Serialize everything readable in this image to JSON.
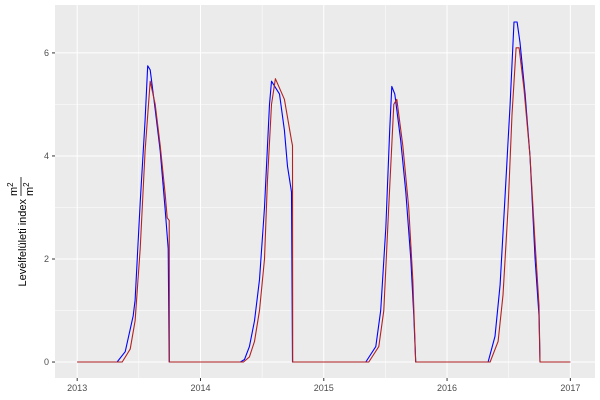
{
  "chart_data": {
    "type": "line",
    "title": "",
    "xlabel": "",
    "ylabel": "Levélfelületi index",
    "ylabel_unit_numerator": "m",
    "ylabel_unit_denominator": "m",
    "ylabel_unit_exponent": "2",
    "xlim": [
      2012.82,
      2017.2
    ],
    "ylim": [
      -0.31,
      6.93
    ],
    "grid": true,
    "legend": "none",
    "x_ticks": [
      2013,
      2014,
      2015,
      2016,
      2017
    ],
    "x_tick_labels": [
      "2013",
      "2014",
      "2015",
      "2016",
      "2017"
    ],
    "y_ticks": [
      0,
      2,
      4,
      6
    ],
    "y_tick_labels": [
      "0",
      "2",
      "4",
      "6"
    ],
    "colors": {
      "panel": "#ebebeb",
      "grid": "#ffffff",
      "series_1": "#0000ff",
      "series_2": "#b22222"
    },
    "series": [
      {
        "color": "#0000ff",
        "points": [
          [
            2013,
            0
          ],
          [
            2013.324,
            0
          ],
          [
            2013.389,
            0.2
          ],
          [
            2013.454,
            0.9
          ],
          [
            2013.47,
            1.2
          ],
          [
            2013.511,
            3.1
          ],
          [
            2013.551,
            4.7
          ],
          [
            2013.572,
            5.75
          ],
          [
            2013.592,
            5.67
          ],
          [
            2013.633,
            4.9
          ],
          [
            2013.673,
            4.1
          ],
          [
            2013.714,
            2.95
          ],
          [
            2013.738,
            2.2
          ],
          [
            2013.746,
            0
          ],
          [
            2014.324,
            0
          ],
          [
            2014.357,
            0.05
          ],
          [
            2014.397,
            0.3
          ],
          [
            2014.438,
            0.8
          ],
          [
            2014.479,
            1.6
          ],
          [
            2014.519,
            3.0
          ],
          [
            2014.56,
            5.0
          ],
          [
            2014.576,
            5.45
          ],
          [
            2014.641,
            5.2
          ],
          [
            2014.681,
            4.5
          ],
          [
            2014.706,
            3.8
          ],
          [
            2014.738,
            3.3
          ],
          [
            2014.746,
            0
          ],
          [
            2015.341,
            0
          ],
          [
            2015.422,
            0.3
          ],
          [
            2015.462,
            1.0
          ],
          [
            2015.503,
            2.6
          ],
          [
            2015.535,
            4.5
          ],
          [
            2015.552,
            5.35
          ],
          [
            2015.576,
            5.2
          ],
          [
            2015.624,
            4.3
          ],
          [
            2015.665,
            3.3
          ],
          [
            2015.706,
            2.0
          ],
          [
            2015.73,
            0.9
          ],
          [
            2015.746,
            0
          ],
          [
            2016.333,
            0
          ],
          [
            2016.389,
            0.5
          ],
          [
            2016.43,
            1.5
          ],
          [
            2016.47,
            3.2
          ],
          [
            2016.511,
            5.0
          ],
          [
            2016.543,
            6.6
          ],
          [
            2016.568,
            6.6
          ],
          [
            2016.592,
            6.2
          ],
          [
            2016.633,
            5.2
          ],
          [
            2016.673,
            4.0
          ],
          [
            2016.714,
            2.0
          ],
          [
            2016.746,
            0.9
          ],
          [
            2016.754,
            0
          ],
          [
            2017,
            0
          ]
        ]
      },
      {
        "color": "#b22222",
        "points": [
          [
            2013,
            0
          ],
          [
            2013.365,
            0
          ],
          [
            2013.43,
            0.25
          ],
          [
            2013.47,
            0.8
          ],
          [
            2013.511,
            2.2
          ],
          [
            2013.551,
            4.1
          ],
          [
            2013.592,
            5.45
          ],
          [
            2013.633,
            5.0
          ],
          [
            2013.673,
            4.2
          ],
          [
            2013.714,
            3.25
          ],
          [
            2013.73,
            2.8
          ],
          [
            2013.746,
            2.75
          ],
          [
            2013.748,
            0
          ],
          [
            2014.349,
            0
          ],
          [
            2014.397,
            0.1
          ],
          [
            2014.438,
            0.4
          ],
          [
            2014.479,
            1.0
          ],
          [
            2014.519,
            2.0
          ],
          [
            2014.543,
            3.5
          ],
          [
            2014.576,
            5.0
          ],
          [
            2014.608,
            5.5
          ],
          [
            2014.681,
            5.1
          ],
          [
            2014.738,
            4.3
          ],
          [
            2014.746,
            4.2
          ],
          [
            2014.748,
            0
          ],
          [
            2015.365,
            0
          ],
          [
            2015.446,
            0.3
          ],
          [
            2015.487,
            1.0
          ],
          [
            2015.527,
            3.0
          ],
          [
            2015.568,
            5.0
          ],
          [
            2015.592,
            5.1
          ],
          [
            2015.641,
            4.2
          ],
          [
            2015.689,
            3.0
          ],
          [
            2015.722,
            1.6
          ],
          [
            2015.746,
            0
          ],
          [
            2016.349,
            0
          ],
          [
            2016.414,
            0.4
          ],
          [
            2016.454,
            1.3
          ],
          [
            2016.495,
            3.0
          ],
          [
            2016.527,
            4.8
          ],
          [
            2016.56,
            6.1
          ],
          [
            2016.584,
            6.1
          ],
          [
            2016.624,
            5.3
          ],
          [
            2016.673,
            4.0
          ],
          [
            2016.714,
            2.3
          ],
          [
            2016.746,
            1.1
          ],
          [
            2016.754,
            0
          ],
          [
            2017,
            0
          ]
        ]
      }
    ]
  }
}
